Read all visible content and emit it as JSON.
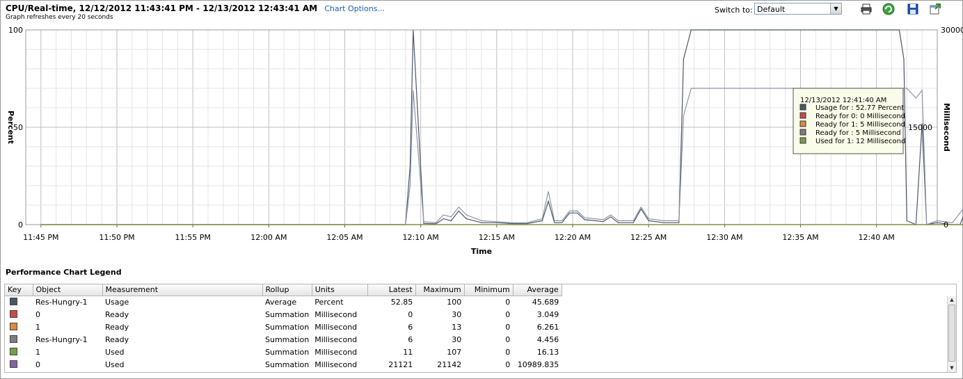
{
  "header": {
    "title": "CPU/Real-time, 12/12/2012 11:43:41 PM - 12/13/2012 12:43:41 AM",
    "chart_options_link": "Chart Options...",
    "subtitle": "Graph refreshes every 20 seconds",
    "switch_to_label": "Switch to:",
    "switch_to_value": "Default"
  },
  "toolbar": {
    "icons": [
      "print-icon",
      "refresh-icon",
      "save-icon",
      "popout-icon"
    ]
  },
  "chart_data": {
    "type": "line",
    "xlabel": "Time",
    "ylabel_left": "Percent",
    "ylabel_right": "Millisecond",
    "ylim_left": [
      0,
      100
    ],
    "ylim_right": [
      0,
      30000
    ],
    "yticks_left": [
      "100",
      "50",
      "0"
    ],
    "yticks_right": [
      "30000",
      "15000",
      "0"
    ],
    "xticks": [
      "11:45 PM",
      "11:50 PM",
      "11:55 PM",
      "12:00 AM",
      "12:05 AM",
      "12:10 AM",
      "12:15 AM",
      "12:20 AM",
      "12:25 AM",
      "12:30 AM",
      "12:35 AM",
      "12:40 AM"
    ],
    "grid": true,
    "series": [
      {
        "name": "Usage for",
        "color": "#4b5667",
        "points": [
          [
            1,
            0
          ],
          [
            25,
            0
          ],
          [
            25.3,
            30
          ],
          [
            25.5,
            100
          ],
          [
            26.2,
            0.6
          ],
          [
            27,
            0.4
          ],
          [
            27.5,
            3
          ],
          [
            28,
            2
          ],
          [
            28.5,
            7
          ],
          [
            29,
            3
          ],
          [
            30,
            1
          ],
          [
            31,
            1
          ],
          [
            32,
            0.5
          ],
          [
            33,
            0.5
          ],
          [
            34,
            2
          ],
          [
            34.4,
            12
          ],
          [
            34.8,
            1
          ],
          [
            35.3,
            1
          ],
          [
            35.8,
            6
          ],
          [
            36.3,
            6
          ],
          [
            36.8,
            2.5
          ],
          [
            37.5,
            2
          ],
          [
            38,
            1.5
          ],
          [
            38.5,
            4
          ],
          [
            39,
            1
          ],
          [
            40,
            1
          ],
          [
            40.5,
            8
          ],
          [
            41,
            2
          ],
          [
            42,
            1
          ],
          [
            43,
            1
          ],
          [
            43.3,
            85
          ],
          [
            43.8,
            100
          ],
          [
            57.5,
            100
          ],
          [
            57.8,
            85
          ],
          [
            58,
            2
          ],
          [
            58.6,
            0
          ],
          [
            59,
            52
          ],
          [
            59.3,
            0
          ],
          [
            60,
            1
          ],
          [
            61,
            0
          ],
          [
            61.5,
            0
          ],
          [
            62,
            10
          ],
          [
            62.5,
            11
          ],
          [
            63,
            33
          ],
          [
            63.5,
            33
          ],
          [
            64,
            65
          ],
          [
            64.5,
            70
          ],
          [
            65,
            52
          ],
          [
            66,
            52
          ],
          [
            67,
            52
          ]
        ]
      },
      {
        "name": "Ready for 0",
        "color": "#c84b4b",
        "points": [
          [
            1,
            0
          ],
          [
            67,
            0
          ]
        ]
      },
      {
        "name": "Ready for 1",
        "color": "#d98c3e",
        "points": [
          [
            1,
            0
          ],
          [
            67,
            0
          ]
        ]
      },
      {
        "name": "Ready for",
        "color": "#8a93a8",
        "points": [
          [
            1,
            0
          ],
          [
            25,
            0
          ],
          [
            25.3,
            20
          ],
          [
            25.5,
            69
          ],
          [
            26.2,
            1.5
          ],
          [
            27,
            1
          ],
          [
            27.5,
            5
          ],
          [
            28,
            4
          ],
          [
            28.5,
            9
          ],
          [
            29,
            5
          ],
          [
            30,
            2
          ],
          [
            31,
            1.5
          ],
          [
            32,
            1
          ],
          [
            33,
            1
          ],
          [
            34,
            3
          ],
          [
            34.4,
            17
          ],
          [
            34.8,
            2
          ],
          [
            35.3,
            2
          ],
          [
            35.8,
            7
          ],
          [
            36.3,
            7
          ],
          [
            36.8,
            3.5
          ],
          [
            37.5,
            3
          ],
          [
            38,
            2.5
          ],
          [
            38.5,
            5
          ],
          [
            39,
            2
          ],
          [
            40,
            2
          ],
          [
            40.5,
            9
          ],
          [
            41,
            3
          ],
          [
            42,
            2
          ],
          [
            43,
            2
          ],
          [
            43.3,
            56
          ],
          [
            43.8,
            70
          ],
          [
            45,
            70
          ],
          [
            47,
            70
          ],
          [
            50,
            70
          ],
          [
            53,
            70
          ],
          [
            56,
            70
          ],
          [
            57.5,
            70
          ],
          [
            58,
            70
          ],
          [
            58.6,
            65
          ],
          [
            59,
            69
          ],
          [
            59.3,
            0
          ],
          [
            60,
            2
          ],
          [
            61,
            1
          ],
          [
            62,
            11
          ],
          [
            62.5,
            12
          ],
          [
            63,
            34
          ],
          [
            63.5,
            50
          ],
          [
            64,
            69
          ],
          [
            64.5,
            70
          ],
          [
            67,
            70
          ]
        ]
      },
      {
        "name": "Used for 1",
        "color": "#78a04a",
        "points": [
          [
            1,
            0
          ],
          [
            67,
            0
          ]
        ]
      }
    ],
    "tooltip": {
      "time": "12/13/2012 12:41:40 AM",
      "rows": [
        {
          "color": "#4b5667",
          "text": "Usage for : 52.77 Percent"
        },
        {
          "color": "#c84b4b",
          "text": "Ready for 0: 0 Millisecond"
        },
        {
          "color": "#d98c3e",
          "text": "Ready for 1: 5 Millisecond"
        },
        {
          "color": "#7d7d7d",
          "text": "Ready for : 5 Millisecond"
        },
        {
          "color": "#78a04a",
          "text": "Used for 1: 12 Millisecond"
        }
      ]
    }
  },
  "legend": {
    "title": "Performance Chart Legend",
    "columns": [
      "Key",
      "Object",
      "Measurement",
      "Rollup",
      "Units",
      "Latest",
      "Maximum",
      "Minimum",
      "Average"
    ],
    "rows": [
      {
        "color": "#4b5667",
        "object": "Res-Hungry-1",
        "measurement": "Usage",
        "rollup": "Average",
        "units": "Percent",
        "latest": "52.85",
        "maximum": "100",
        "minimum": "0",
        "average": "45.689"
      },
      {
        "color": "#c84b4b",
        "object": "0",
        "measurement": "Ready",
        "rollup": "Summation",
        "units": "Millisecond",
        "latest": "0",
        "maximum": "30",
        "minimum": "0",
        "average": "3.049"
      },
      {
        "color": "#d98c3e",
        "object": "1",
        "measurement": "Ready",
        "rollup": "Summation",
        "units": "Millisecond",
        "latest": "6",
        "maximum": "13",
        "minimum": "0",
        "average": "6.261"
      },
      {
        "color": "#7d7d7d",
        "object": "Res-Hungry-1",
        "measurement": "Ready",
        "rollup": "Summation",
        "units": "Millisecond",
        "latest": "6",
        "maximum": "30",
        "minimum": "0",
        "average": "4.456"
      },
      {
        "color": "#78a04a",
        "object": "1",
        "measurement": "Used",
        "rollup": "Summation",
        "units": "Millisecond",
        "latest": "11",
        "maximum": "107",
        "minimum": "0",
        "average": "16.13"
      },
      {
        "color": "#8463a8",
        "object": "0",
        "measurement": "Used",
        "rollup": "Summation",
        "units": "Millisecond",
        "latest": "21121",
        "maximum": "21142",
        "minimum": "0",
        "average": "10989.835"
      }
    ]
  }
}
